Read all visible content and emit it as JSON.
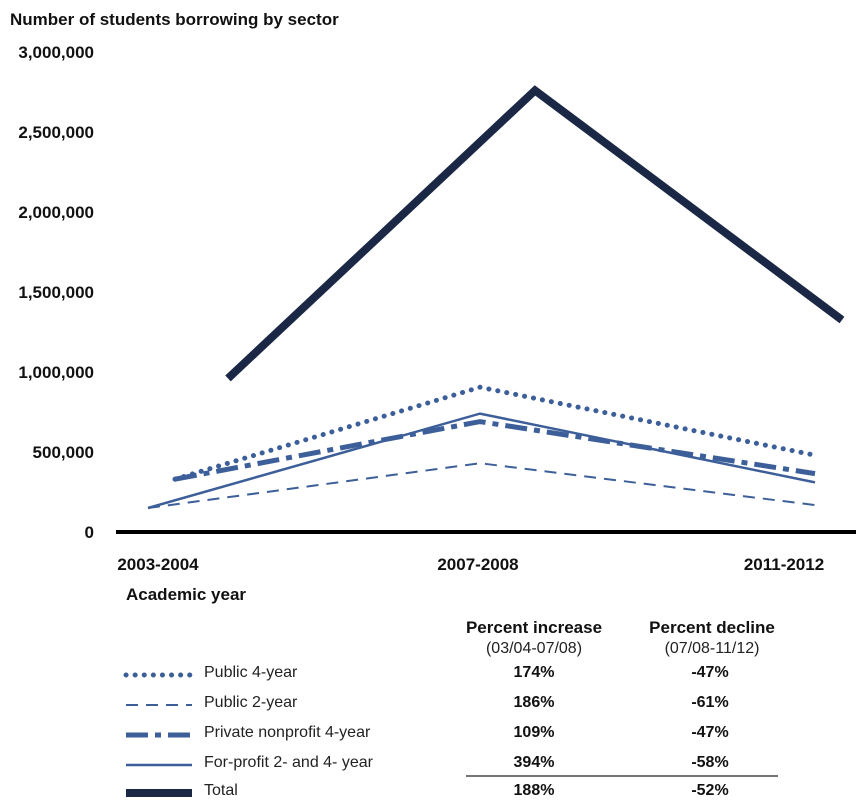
{
  "chart_data": {
    "type": "line",
    "title": "Number of students borrowing by sector",
    "xlabel": "Academic year",
    "ylabel": "",
    "categories": [
      "2003-2004",
      "2007-2008",
      "2011-2012"
    ],
    "ylim": [
      0,
      3000000
    ],
    "yticks": [
      "0",
      "500,000",
      "1,000,000",
      "1,500,000",
      "2,000,000",
      "2,500,000",
      "3,000,000"
    ],
    "ytick_values": [
      0,
      500000,
      1000000,
      1500000,
      2000000,
      2500000,
      3000000
    ],
    "grid": false,
    "series": [
      {
        "name": "Public 4-year",
        "values": [
          330000,
          905000,
          480000
        ],
        "style": "dotted",
        "color": "#3d5f99"
      },
      {
        "name": "Public 2-year",
        "values": [
          150000,
          430000,
          168000
        ],
        "style": "dashed",
        "color": "#3d5f99"
      },
      {
        "name": "Private nonprofit 4-year",
        "values": [
          330000,
          690000,
          365000
        ],
        "style": "dashdot",
        "color": "#3d5f99"
      },
      {
        "name": "For-profit 2- and 4- year",
        "values": [
          150000,
          740000,
          310000
        ],
        "style": "solid-thin",
        "color": "#3d5f99"
      },
      {
        "name": "Total",
        "values": [
          960000,
          2760000,
          1325000
        ],
        "style": "solid-thick",
        "color": "#1b2845"
      }
    ]
  },
  "table": {
    "col1_header": "Percent increase",
    "col1_sub": "(03/04-07/08)",
    "col2_header": "Percent decline",
    "col2_sub": "(07/08-11/12)",
    "rows": [
      {
        "label": "Public 4-year",
        "increase": "174%",
        "decline": "-47%"
      },
      {
        "label": "Public 2-year",
        "increase": "186%",
        "decline": "-61%"
      },
      {
        "label": "Private nonprofit 4-year",
        "increase": "109%",
        "decline": "-47%"
      },
      {
        "label": "For-profit 2- and 4- year",
        "increase": "394%",
        "decline": "-58%"
      },
      {
        "label": "Total",
        "increase": "188%",
        "decline": "-52%"
      }
    ]
  }
}
